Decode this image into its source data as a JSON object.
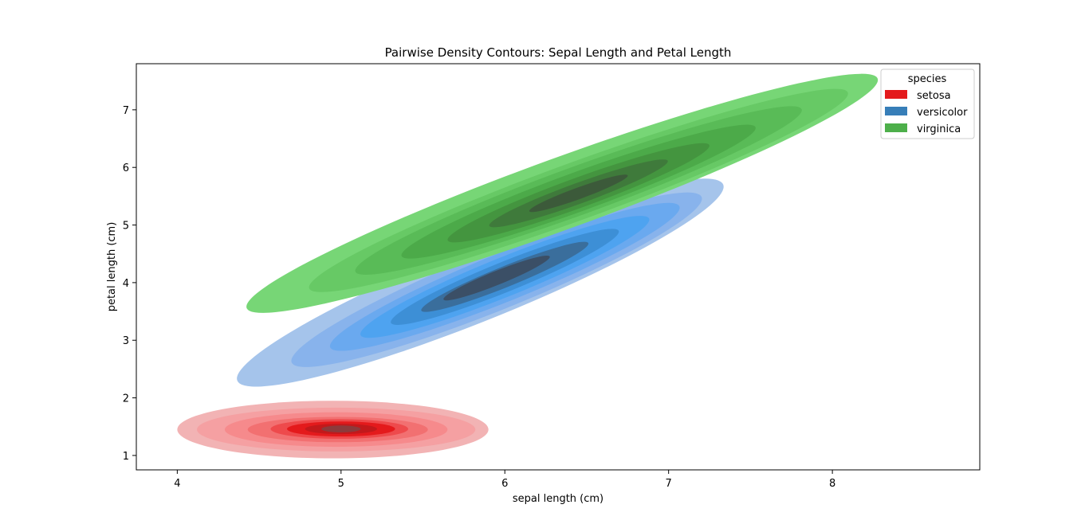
{
  "chart_data": {
    "type": "contour",
    "title": "Pairwise Density Contours: Sepal Length and Petal Length",
    "xlabel": "sepal length (cm)",
    "ylabel": "petal length (cm)",
    "xlim": [
      3.75,
      8.9
    ],
    "ylim": [
      0.75,
      7.8
    ],
    "xticks": [
      4,
      5,
      6,
      7,
      8
    ],
    "yticks": [
      1,
      2,
      3,
      4,
      5,
      6,
      7
    ],
    "grid": false,
    "legend": {
      "title": "species",
      "placement": "upper right"
    },
    "series": [
      {
        "name": "setosa",
        "color": "#e41a1c",
        "levels": [
          {
            "cx": 4.95,
            "cy": 1.45,
            "rx": 0.95,
            "ry": 0.5,
            "angle": 0,
            "fill": "#f2b3b4"
          },
          {
            "cx": 4.97,
            "cy": 1.45,
            "rx": 0.85,
            "ry": 0.38,
            "angle": 0,
            "fill": "#f5a0a2"
          },
          {
            "cx": 4.97,
            "cy": 1.45,
            "rx": 0.68,
            "ry": 0.3,
            "angle": 0,
            "fill": "#f68a8c"
          },
          {
            "cx": 4.98,
            "cy": 1.45,
            "rx": 0.55,
            "ry": 0.22,
            "angle": 0,
            "fill": "#f27071"
          },
          {
            "cx": 4.99,
            "cy": 1.46,
            "rx": 0.42,
            "ry": 0.17,
            "angle": 0,
            "fill": "#ee4a4c"
          },
          {
            "cx": 5.0,
            "cy": 1.46,
            "rx": 0.33,
            "ry": 0.13,
            "angle": 0,
            "fill": "#e41a1c"
          },
          {
            "cx": 5.0,
            "cy": 1.46,
            "rx": 0.22,
            "ry": 0.09,
            "angle": 0,
            "fill": "#c2191b"
          },
          {
            "cx": 5.0,
            "cy": 1.46,
            "rx": 0.12,
            "ry": 0.06,
            "angle": 0,
            "fill": "#8c3b3c"
          }
        ]
      },
      {
        "name": "versicolor",
        "color": "#377eb8",
        "levels": [
          {
            "cx": 5.85,
            "cy": 4.0,
            "rx": 1.6,
            "ry": 0.65,
            "angle": 22,
            "fill": "#a5c4eb"
          },
          {
            "cx": 5.95,
            "cy": 4.05,
            "rx": 1.35,
            "ry": 0.52,
            "angle": 22,
            "fill": "#88b3ec"
          },
          {
            "cx": 6.0,
            "cy": 4.1,
            "rx": 1.15,
            "ry": 0.42,
            "angle": 22,
            "fill": "#6aa9ef"
          },
          {
            "cx": 6.0,
            "cy": 4.1,
            "rx": 0.95,
            "ry": 0.34,
            "angle": 22,
            "fill": "#4ea3f0"
          },
          {
            "cx": 6.0,
            "cy": 4.1,
            "rx": 0.75,
            "ry": 0.26,
            "angle": 22,
            "fill": "#3d8fd6"
          },
          {
            "cx": 6.0,
            "cy": 4.1,
            "rx": 0.55,
            "ry": 0.18,
            "angle": 22,
            "fill": "#3a6e9c"
          },
          {
            "cx": 5.95,
            "cy": 4.08,
            "rx": 0.35,
            "ry": 0.12,
            "angle": 22,
            "fill": "#3b4f66"
          }
        ]
      },
      {
        "name": "virginica",
        "color": "#4daf4a",
        "levels": [
          {
            "cx": 6.35,
            "cy": 5.55,
            "rx": 2.05,
            "ry": 0.62,
            "angle": 20,
            "fill": "#77d676"
          },
          {
            "cx": 6.45,
            "cy": 5.6,
            "rx": 1.75,
            "ry": 0.5,
            "angle": 20,
            "fill": "#67c965"
          },
          {
            "cx": 6.45,
            "cy": 5.6,
            "rx": 1.45,
            "ry": 0.42,
            "angle": 20,
            "fill": "#59bb57"
          },
          {
            "cx": 6.45,
            "cy": 5.58,
            "rx": 1.15,
            "ry": 0.34,
            "angle": 20,
            "fill": "#4caa49"
          },
          {
            "cx": 6.45,
            "cy": 5.56,
            "rx": 0.85,
            "ry": 0.26,
            "angle": 20,
            "fill": "#44953f"
          },
          {
            "cx": 6.45,
            "cy": 5.55,
            "rx": 0.58,
            "ry": 0.18,
            "angle": 20,
            "fill": "#3f7a3b"
          },
          {
            "cx": 6.45,
            "cy": 5.55,
            "rx": 0.32,
            "ry": 0.1,
            "angle": 20,
            "fill": "#3c5a3a"
          }
        ]
      }
    ]
  }
}
